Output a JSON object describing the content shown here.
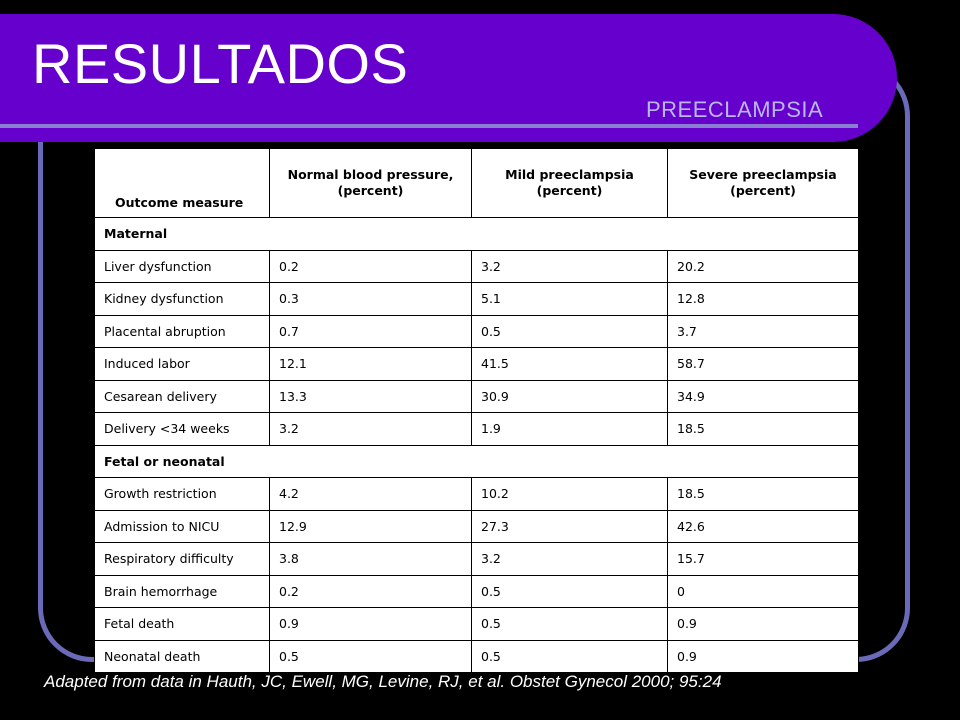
{
  "slide": {
    "title": "RESULTADOS",
    "subtitle": "PREECLAMPSIA",
    "citation": "Adapted from data in Hauth, JC, Ewell, MG, Levine, RJ, et al. Obstet Gynecol 2000; 95:24"
  },
  "table": {
    "headers": [
      "Outcome measure",
      "Normal blood pressure, (percent)",
      "Mild preeclampsia (percent)",
      "Severe preeclampsia (percent)"
    ],
    "sections": [
      {
        "name": "Maternal",
        "rows": [
          [
            "Liver dysfunction",
            "0.2",
            "3.2",
            "20.2"
          ],
          [
            "Kidney dysfunction",
            "0.3",
            "5.1",
            "12.8"
          ],
          [
            "Placental abruption",
            "0.7",
            "0.5",
            "3.7"
          ],
          [
            "Induced labor",
            "12.1",
            "41.5",
            "58.7"
          ],
          [
            "Cesarean delivery",
            "13.3",
            "30.9",
            "34.9"
          ],
          [
            "Delivery <34 weeks",
            "3.2",
            "1.9",
            "18.5"
          ]
        ]
      },
      {
        "name": "Fetal or neonatal",
        "rows": [
          [
            "Growth restriction",
            "4.2",
            "10.2",
            "18.5"
          ],
          [
            "Admission to NICU",
            "12.9",
            "27.3",
            "42.6"
          ],
          [
            "Respiratory difficulty",
            "3.8",
            "3.2",
            "15.7"
          ],
          [
            "Brain hemorrhage",
            "0.2",
            "0.5",
            "0"
          ],
          [
            "Fetal death",
            "0.9",
            "0.5",
            "0.9"
          ],
          [
            "Neonatal death",
            "0.5",
            "0.5",
            "0.9"
          ]
        ]
      }
    ]
  },
  "colors": {
    "background": "#000000",
    "title_bar": "#6600cc",
    "frame": "#6a6ab8",
    "subtitle": "#b8b8ee"
  }
}
